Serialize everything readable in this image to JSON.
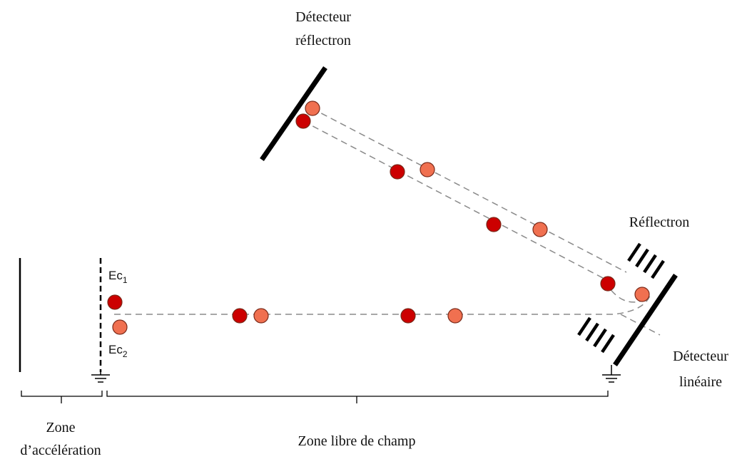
{
  "labels": {
    "detector_reflectron_line1": "Détecteur",
    "detector_reflectron_line2": "réflectron",
    "reflectron": "Réflectron",
    "detector_linear_line1": "Détecteur",
    "detector_linear_line2": "linéaire",
    "zone_acceleration_line1": "Zone",
    "zone_acceleration_line2": "d’accélération",
    "zone_free_field": "Zone libre de champ",
    "ec1_base": "Ec",
    "ec1_sub": "1",
    "ec2_base": "Ec",
    "ec2_sub": "2"
  },
  "colors": {
    "ion_heavy": "#cc0000",
    "ion_light": "#f07050",
    "ion_stroke": "#7a2a1a",
    "dashed_path": "#8a8a8a",
    "structure": "#000000"
  }
}
